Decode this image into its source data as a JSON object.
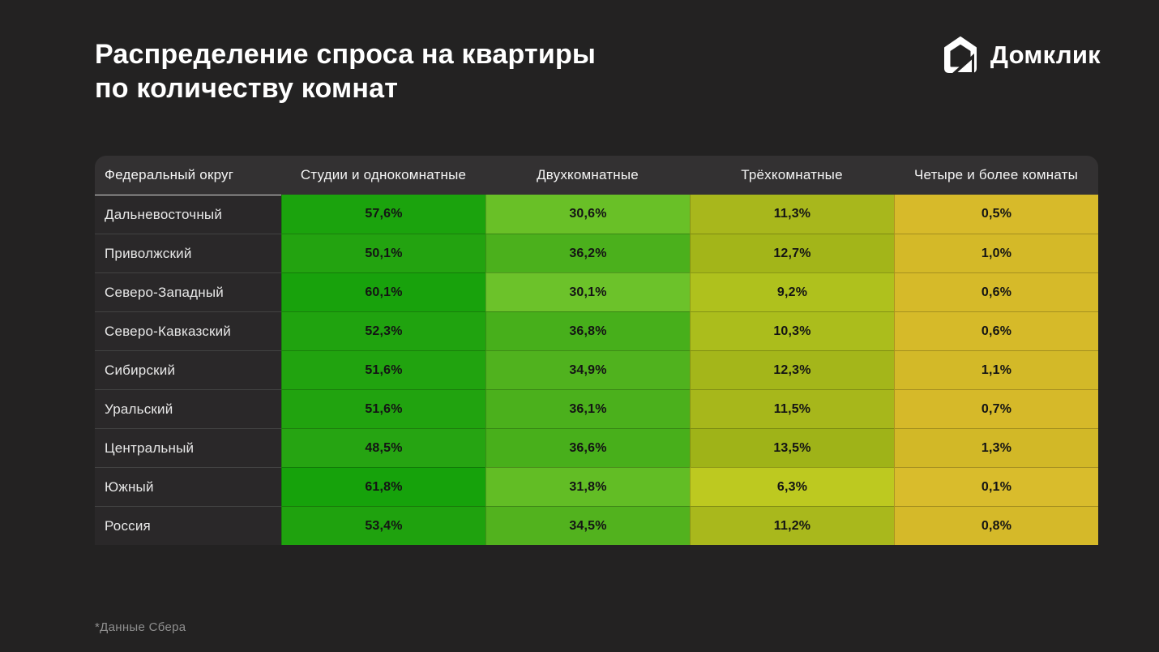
{
  "header": {
    "title_lines": [
      "Распределение спроса на квартиры",
      "по количеству комнат"
    ],
    "brand": "Домклик"
  },
  "footnote": "*Данные Сбера",
  "colors": {
    "background": "#232222",
    "table_header_bg": "#333132",
    "label_column_bg": "#2a2829",
    "value_text": "#141414",
    "footnote_text": "#8f8f8f"
  },
  "chart_data": {
    "type": "heatmap",
    "title": "Распределение спроса на квартиры по количеству комнат",
    "source_note": "*Данные Сбера",
    "unit": "%",
    "columns": [
      "Федеральный округ",
      "Студии и однокомнатные",
      "Двухкомнатные",
      "Трёхкомнатные",
      "Четыре и более комнаты"
    ],
    "color_scale": {
      "low_value_color": "#d9bc2c",
      "high_value_color": "#16a20b",
      "domain": [
        0,
        62
      ]
    },
    "rows": [
      {
        "label": "Дальневосточный",
        "values": [
          57.6,
          30.6,
          11.3,
          0.5
        ],
        "colors": [
          "#1ba30d",
          "#69c027",
          "#a8b71c",
          "#d7ba2a"
        ]
      },
      {
        "label": "Приволжский",
        "values": [
          50.1,
          36.2,
          12.7,
          1.0
        ],
        "colors": [
          "#23a310",
          "#4bb01c",
          "#a3b519",
          "#d4b928"
        ]
      },
      {
        "label": "Северо-Западный",
        "values": [
          60.1,
          30.1,
          9.2,
          0.6
        ],
        "colors": [
          "#18a20c",
          "#6cc22a",
          "#afc11d",
          "#d6ba29"
        ]
      },
      {
        "label": "Северо-Кавказский",
        "values": [
          52.3,
          36.8,
          10.3,
          0.6
        ],
        "colors": [
          "#20a30f",
          "#47af1b",
          "#abbd1c",
          "#d6ba29"
        ]
      },
      {
        "label": "Сибирский",
        "values": [
          51.6,
          34.9,
          12.3,
          1.1
        ],
        "colors": [
          "#21a30f",
          "#50b21e",
          "#a4b61a",
          "#d3b928"
        ]
      },
      {
        "label": "Уральский",
        "values": [
          51.6,
          36.1,
          11.5,
          0.7
        ],
        "colors": [
          "#21a30f",
          "#4bb01c",
          "#a7b71b",
          "#d6b929"
        ]
      },
      {
        "label": "Центральный",
        "values": [
          48.5,
          36.6,
          13.5,
          1.3
        ],
        "colors": [
          "#26a412",
          "#48af1b",
          "#9fb318",
          "#d2b827"
        ]
      },
      {
        "label": "Южный",
        "values": [
          61.8,
          31.8,
          6.3,
          0.1
        ],
        "colors": [
          "#16a20b",
          "#62bd25",
          "#bdc920",
          "#d9bc2c"
        ]
      },
      {
        "label": "Россия",
        "values": [
          53.4,
          34.5,
          11.2,
          0.8
        ],
        "colors": [
          "#1fa20e",
          "#52b21e",
          "#a9b81c",
          "#d5b929"
        ]
      }
    ]
  }
}
